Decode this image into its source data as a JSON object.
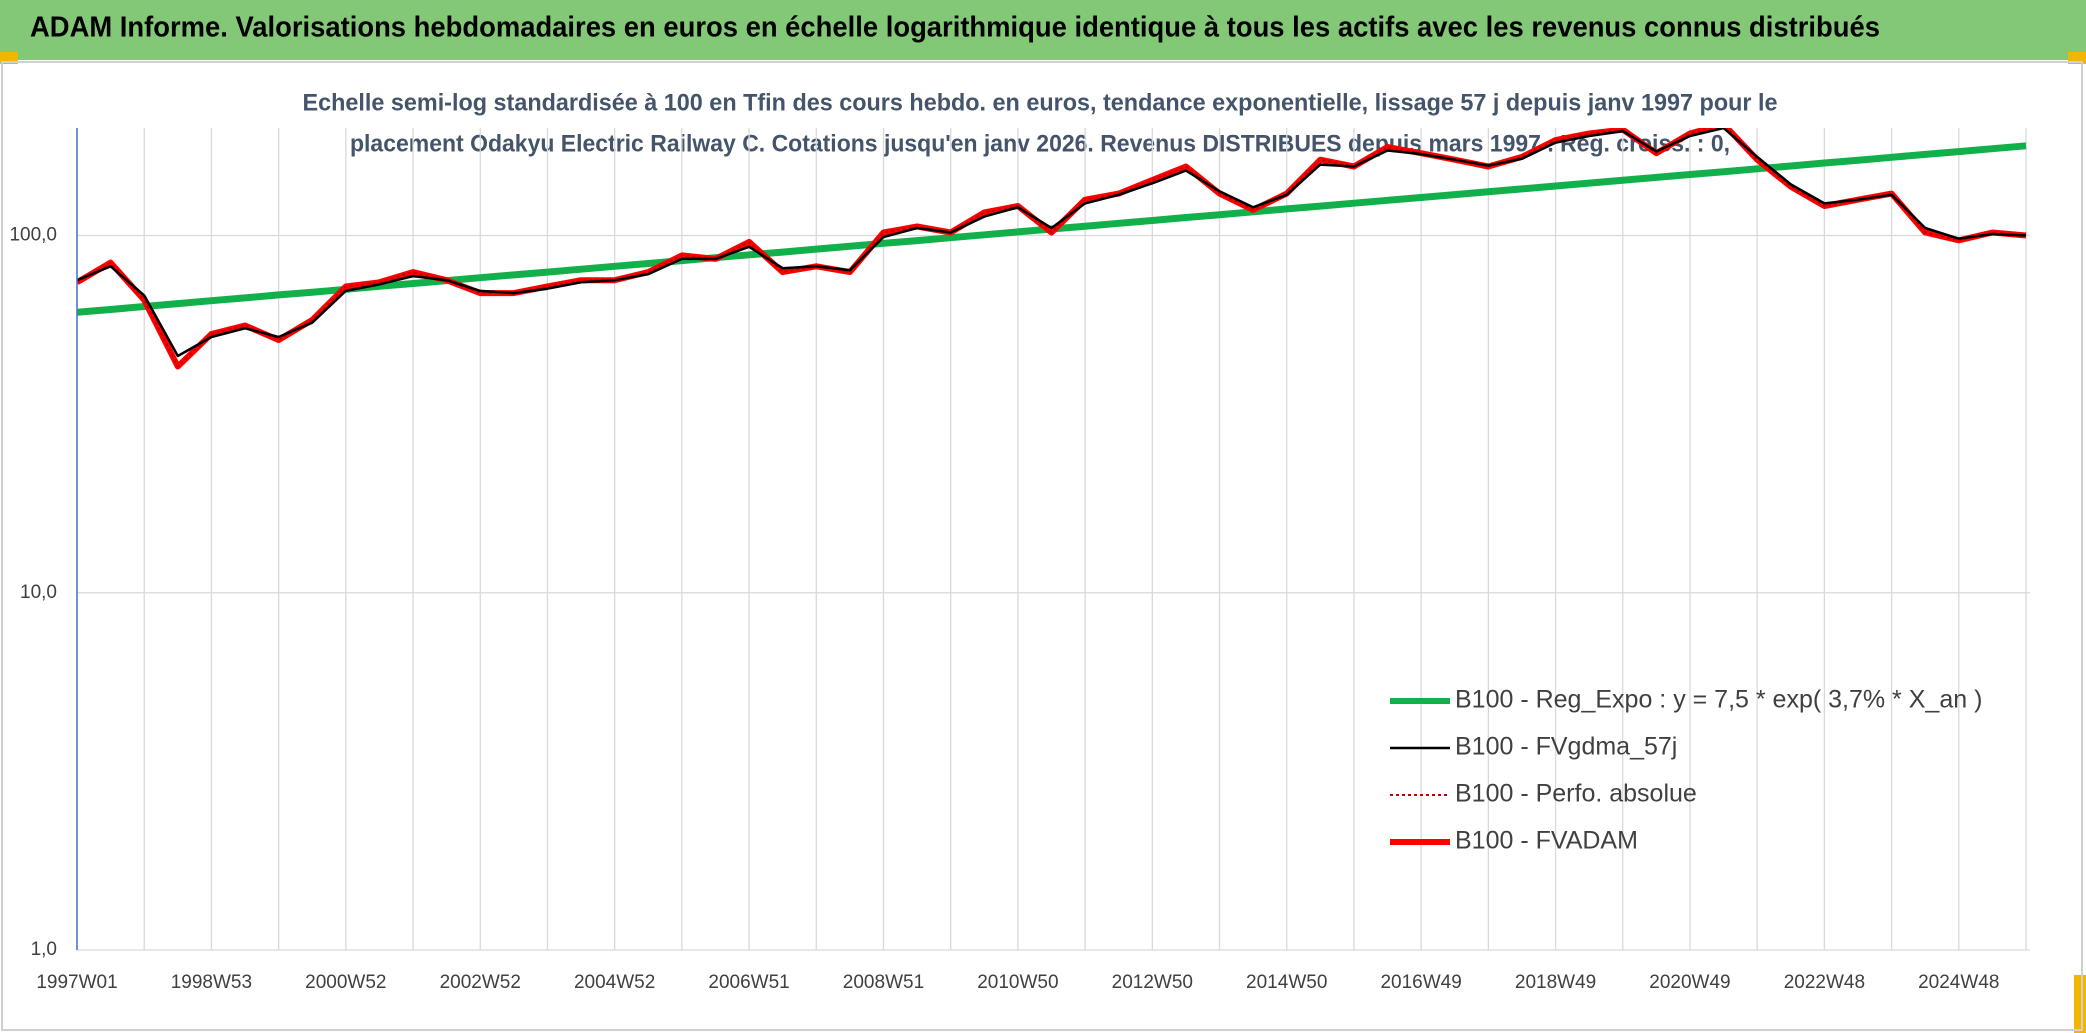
{
  "chart_data": {
    "type": "line",
    "title": "ADAM Informe. Valorisations hebdomadaires en euros en échelle logarithmique identique à tous les actifs avec les revenus connus distribués",
    "subtitle": [
      "Echelle semi-log standardisée à 100 en Tfin des cours hebdo. en euros, tendance exponentielle, lissage 57 j depuis janv 1997 pour le",
      "placement Odakyu Electric Railway C. Cotations jusqu'en janv 2026. Revenus DISTRIBUES depuis mars 1997 . Reg. croiss. : 0,"
    ],
    "log_y": true,
    "grid": true,
    "legend": "lower right",
    "ylim": [
      1,
      200
    ],
    "yticks": [
      {
        "value": 1,
        "label": "1,0"
      },
      {
        "value": 10,
        "label": "10,0"
      },
      {
        "value": 100,
        "label": "100,0"
      }
    ],
    "categories": [
      "1997W01",
      null,
      null,
      null,
      "1998W53",
      null,
      null,
      null,
      "2000W52",
      null,
      null,
      null,
      "2002W52",
      null,
      null,
      null,
      "2004W52",
      null,
      null,
      null,
      "2006W51",
      null,
      null,
      null,
      "2008W51",
      null,
      null,
      null,
      "2010W50",
      null,
      null,
      null,
      "2012W50",
      null,
      null,
      null,
      "2014W50",
      null,
      null,
      null,
      "2016W49",
      null,
      null,
      null,
      "2018W49",
      null,
      null,
      null,
      "2020W49",
      null,
      null,
      null,
      "2022W48",
      null,
      null,
      null,
      "2024W48",
      null,
      null
    ],
    "series": [
      {
        "name": "B100 - Reg_Expo : y = 7,5 * exp( 3,7% *  X_an )",
        "color": "#12b04b",
        "width": 7,
        "style": "solid",
        "values": [
          61.0,
          62.1,
          63.3,
          64.5,
          65.7,
          66.9,
          68.2,
          69.4,
          70.7,
          72.1,
          73.4,
          74.8,
          76.2,
          77.6,
          79.0,
          80.5,
          82.0,
          83.5,
          85.1,
          86.7,
          88.3,
          89.9,
          91.6,
          93.3,
          95.1,
          96.8,
          98.6,
          100.5,
          102.4,
          104.3,
          106.2,
          108.2,
          110.2,
          112.3,
          114.4,
          116.5,
          118.7,
          120.9,
          123.2,
          125.5,
          127.8,
          130.2,
          132.6,
          135.1,
          137.6,
          140.2,
          142.8,
          145.5,
          148.2,
          150.9,
          153.8,
          156.6,
          159.6,
          162.5,
          165.6,
          168.7,
          171.8,
          175.0,
          178.3
        ]
      },
      {
        "name": "B100 - FVgdma_57j",
        "color": "#000000",
        "width": 2.5,
        "style": "solid",
        "values": [
          75,
          82,
          68,
          46,
          52,
          55,
          52,
          57,
          70,
          73,
          77,
          75,
          70,
          69,
          71,
          74,
          75,
          78,
          86,
          86,
          93,
          81,
          82,
          80,
          99,
          105,
          102,
          113,
          120,
          105,
          123,
          130,
          140,
          152,
          133,
          120,
          130,
          158,
          156,
          173,
          169,
          163,
          157,
          164,
          182,
          190,
          196,
          172,
          190,
          200,
          166,
          139,
          123,
          126,
          130,
          105,
          98,
          101,
          100
        ]
      },
      {
        "name": "B100 - Perfo. absolue",
        "color": "#c00000",
        "width": 2,
        "style": "dotted",
        "values": [
          74,
          84,
          66,
          43,
          53,
          56,
          51,
          58,
          72,
          74,
          79,
          75,
          69,
          69,
          72,
          75,
          75,
          79,
          88,
          86,
          96,
          79,
          82,
          79,
          102,
          106,
          102,
          116,
          121,
          102,
          126,
          131,
          143,
          156,
          131,
          118,
          131,
          163,
          156,
          177,
          170,
          163,
          156,
          166,
          185,
          193,
          198,
          170,
          193,
          205,
          163,
          137,
          121,
          126,
          131,
          102,
          97,
          102,
          100
        ]
      },
      {
        "name": "B100 - FVADAM",
        "color": "#ff0000",
        "width": 6,
        "style": "solid",
        "values": [
          74,
          84,
          66,
          43,
          53,
          56,
          51,
          58,
          72,
          74,
          79,
          75,
          69,
          69,
          72,
          75,
          75,
          79,
          88,
          86,
          96,
          79,
          82,
          79,
          102,
          106,
          102,
          116,
          121,
          102,
          126,
          131,
          143,
          156,
          131,
          118,
          131,
          163,
          156,
          177,
          170,
          163,
          156,
          166,
          185,
          193,
          198,
          170,
          193,
          205,
          163,
          137,
          121,
          126,
          131,
          102,
          97,
          102,
          100
        ]
      }
    ]
  }
}
